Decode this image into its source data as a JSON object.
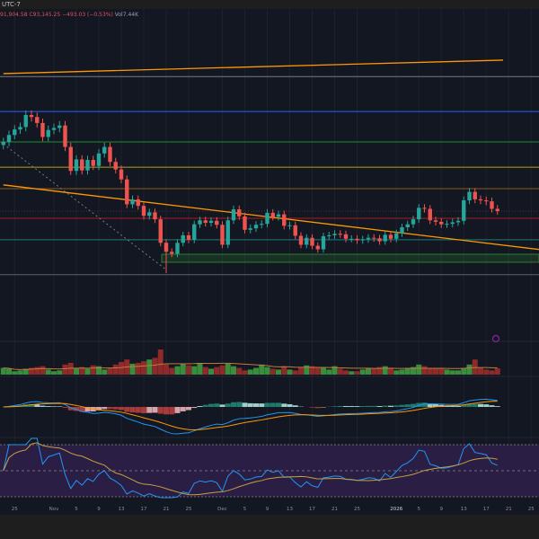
{
  "header": {
    "timezone": "UTC-7",
    "low": "91,904.58",
    "close": "C93,145.25",
    "change": "−493.03 (−0.53%)",
    "volume": "Vol7.44K"
  },
  "colors": {
    "background": "#131722",
    "up": "#26a69a",
    "down": "#ef5350",
    "vol_up": "#388e3c",
    "vol_down": "#8e2a2a",
    "rsi_band": "#2a1e45",
    "macd_line": "#2196f3",
    "signal_line": "#ff9800",
    "rsi_line": "#2196f3",
    "rsi_ma": "#c8a040"
  },
  "chart_data": {
    "type": "candlestick",
    "x_start": "2025-10-23",
    "x_tick_labels": [
      {
        "label": "25",
        "date": "2025-10-25"
      },
      {
        "label": "Nov",
        "date": "2025-11-01"
      },
      {
        "label": "5",
        "date": "2025-11-05"
      },
      {
        "label": "9",
        "date": "2025-11-09"
      },
      {
        "label": "13",
        "date": "2025-11-13"
      },
      {
        "label": "17",
        "date": "2025-11-17"
      },
      {
        "label": "21",
        "date": "2025-11-21"
      },
      {
        "label": "25",
        "date": "2025-11-25"
      },
      {
        "label": "Dec",
        "date": "2025-12-01"
      },
      {
        "label": "5",
        "date": "2025-12-05"
      },
      {
        "label": "9",
        "date": "2025-12-09"
      },
      {
        "label": "13",
        "date": "2025-12-13"
      },
      {
        "label": "17",
        "date": "2025-12-17"
      },
      {
        "label": "21",
        "date": "2025-12-21"
      },
      {
        "label": "25",
        "date": "2025-12-25"
      },
      {
        "label": "2026",
        "date": "2026-01-01"
      },
      {
        "label": "5",
        "date": "2026-01-05"
      },
      {
        "label": "9",
        "date": "2026-01-09"
      },
      {
        "label": "13",
        "date": "2026-01-13"
      },
      {
        "label": "17",
        "date": "2026-01-17"
      },
      {
        "label": "21",
        "date": "2026-01-21"
      },
      {
        "label": "25",
        "date": "2026-01-25"
      }
    ],
    "closes": [
      107000,
      108400,
      109500,
      110000,
      112400,
      112000,
      110800,
      108000,
      109400,
      109800,
      110300,
      106000,
      101200,
      103500,
      101300,
      103400,
      102200,
      104700,
      106000,
      103000,
      101500,
      99500,
      94500,
      95500,
      94200,
      92200,
      92900,
      91500,
      86800,
      85000,
      84600,
      86800,
      88300,
      87400,
      90500,
      91300,
      90800,
      91200,
      90400,
      86400,
      91300,
      93500,
      92100,
      89400,
      89700,
      90400,
      90600,
      92800,
      92000,
      92500,
      90200,
      90300,
      88200,
      86400,
      87800,
      86200,
      85500,
      88100,
      88300,
      88600,
      88500,
      87600,
      87600,
      87300,
      87500,
      87800,
      87700,
      87100,
      88400,
      87600,
      88700,
      89900,
      90500,
      91500,
      93800,
      93600,
      91300,
      91000,
      90500,
      90600,
      90900,
      91200,
      95300,
      97000,
      95500,
      95300,
      95100,
      93600,
      93145
    ],
    "volumes_k": [
      8,
      7,
      4,
      5,
      7,
      8,
      9,
      10,
      6,
      4,
      5,
      12,
      14,
      8,
      9,
      7,
      11,
      10,
      6,
      8,
      12,
      15,
      18,
      13,
      14,
      16,
      18,
      20,
      30,
      12,
      8,
      10,
      13,
      11,
      10,
      14,
      9,
      7,
      9,
      11,
      13,
      10,
      8,
      5,
      6,
      8,
      12,
      9,
      7,
      6,
      10,
      6,
      5,
      9,
      11,
      10,
      9,
      8,
      6,
      10,
      7,
      5,
      4,
      4,
      6,
      8,
      7,
      9,
      10,
      8,
      5,
      6,
      8,
      9,
      12,
      10,
      8,
      7,
      8,
      6,
      5,
      5,
      8,
      12,
      18,
      8,
      6,
      5,
      7.44
    ],
    "horizontal_levels": [
      {
        "price": 120100,
        "color": "#787b86"
      },
      {
        "price": 113100,
        "color": "#2962ff"
      },
      {
        "price": 107000,
        "color": "#1e8c2a"
      },
      {
        "price": 101950,
        "color": "#b5a016"
      },
      {
        "price": 97650,
        "color": "#8a5a1a"
      },
      {
        "price": 91700,
        "color": "#a02020"
      },
      {
        "price": 87400,
        "color": "#1f7a7a"
      },
      {
        "price": 80400,
        "color": "#5d606b"
      }
    ],
    "zone": {
      "from_price": 82900,
      "to_price": 84500,
      "color": "#2e7d32"
    },
    "trendlines": [
      {
        "from": {
          "date": "2025-10-23",
          "price": 120700
        },
        "to": {
          "date": "2026-01-20",
          "price": 123400
        },
        "color": "#ff9800"
      },
      {
        "from": {
          "date": "2025-10-23",
          "price": 98400
        },
        "to": {
          "date": "2026-02-01",
          "price": 84700
        },
        "color": "#ff9800"
      },
      {
        "from": {
          "date": "2025-10-23",
          "price": 106600
        },
        "to": {
          "date": "2025-11-21",
          "price": 81400
        },
        "color": "#787b86",
        "dashed": true
      }
    ],
    "indicators": [
      "Volume",
      "MACD",
      "RSI"
    ]
  }
}
